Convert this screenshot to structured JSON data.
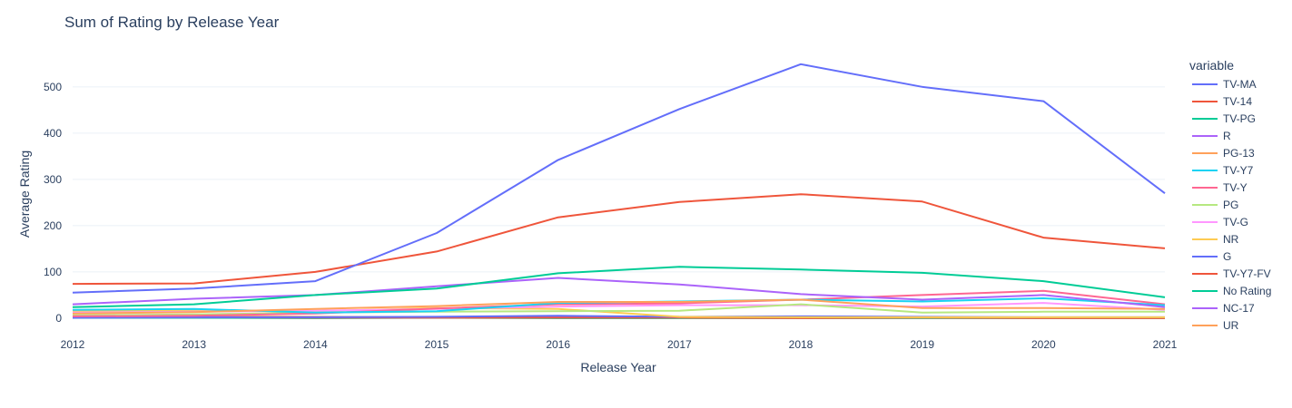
{
  "chart_data": {
    "type": "line",
    "title": "Sum of Rating by Release Year",
    "xlabel": "Release Year",
    "ylabel": "Average Rating",
    "legend_title": "variable",
    "legend_position": "right",
    "x": [
      2012,
      2013,
      2014,
      2015,
      2016,
      2017,
      2018,
      2019,
      2020,
      2021
    ],
    "xlim": [
      2012,
      2021
    ],
    "ylim": [
      -10,
      580
    ],
    "x_ticks": [
      "2012",
      "2013",
      "2014",
      "2015",
      "2016",
      "2017",
      "2018",
      "2019",
      "2020",
      "2021"
    ],
    "y_ticks": [
      0,
      100,
      200,
      300,
      400,
      500
    ],
    "y_tick_labels": [
      "0",
      "100",
      "200",
      "300",
      "400",
      "500"
    ],
    "series": [
      {
        "name": "TV-MA",
        "color": "#636efa",
        "values": [
          55,
          64,
          80,
          184,
          342,
          452,
          549,
          500,
          469,
          270
        ]
      },
      {
        "name": "TV-14",
        "color": "#EF553B",
        "values": [
          74,
          75,
          100,
          144,
          218,
          251,
          268,
          252,
          174,
          151
        ]
      },
      {
        "name": "TV-PG",
        "color": "#00cc96",
        "values": [
          24,
          30,
          50,
          64,
          97,
          111,
          105,
          98,
          80,
          45
        ]
      },
      {
        "name": "R",
        "color": "#ab63fa",
        "values": [
          30,
          42,
          50,
          69,
          87,
          73,
          52,
          40,
          50,
          24
        ]
      },
      {
        "name": "PG-13",
        "color": "#FFA15A",
        "values": [
          10,
          13,
          20,
          26,
          35,
          35,
          40,
          22,
          22,
          20
        ]
      },
      {
        "name": "TV-Y7",
        "color": "#19d3f3",
        "values": [
          18,
          20,
          12,
          15,
          33,
          36,
          40,
          36,
          43,
          28
        ]
      },
      {
        "name": "TV-Y",
        "color": "#FF6692",
        "values": [
          4,
          5,
          10,
          21,
          30,
          32,
          40,
          50,
          59,
          30
        ]
      },
      {
        "name": "PG",
        "color": "#B6E880",
        "values": [
          6,
          8,
          12,
          14,
          15,
          16,
          30,
          12,
          14,
          14
        ]
      },
      {
        "name": "TV-G",
        "color": "#FF97FF",
        "values": [
          12,
          14,
          16,
          20,
          25,
          28,
          28,
          25,
          33,
          18
        ]
      },
      {
        "name": "NR",
        "color": "#FECB52",
        "values": [
          15,
          17,
          15,
          22,
          20,
          3,
          2,
          2,
          2,
          2
        ]
      },
      {
        "name": "G",
        "color": "#636efa",
        "values": [
          1,
          2,
          2,
          3,
          5,
          3,
          4,
          3,
          2,
          2
        ]
      },
      {
        "name": "TV-Y7-FV",
        "color": "#EF553B",
        "values": [
          2,
          2,
          1,
          1,
          1,
          1,
          0,
          1,
          0,
          0
        ]
      },
      {
        "name": "No Rating",
        "color": "#00cc96",
        "values": [
          1,
          1,
          0,
          1,
          0,
          0,
          0,
          0,
          0,
          0
        ]
      },
      {
        "name": "NC-17",
        "color": "#ab63fa",
        "values": [
          1,
          1,
          1,
          1,
          2,
          1,
          1,
          1,
          1,
          1
        ]
      },
      {
        "name": "UR",
        "color": "#FFA15A",
        "values": [
          3,
          4,
          3,
          2,
          2,
          1,
          1,
          1,
          1,
          1
        ]
      }
    ]
  }
}
